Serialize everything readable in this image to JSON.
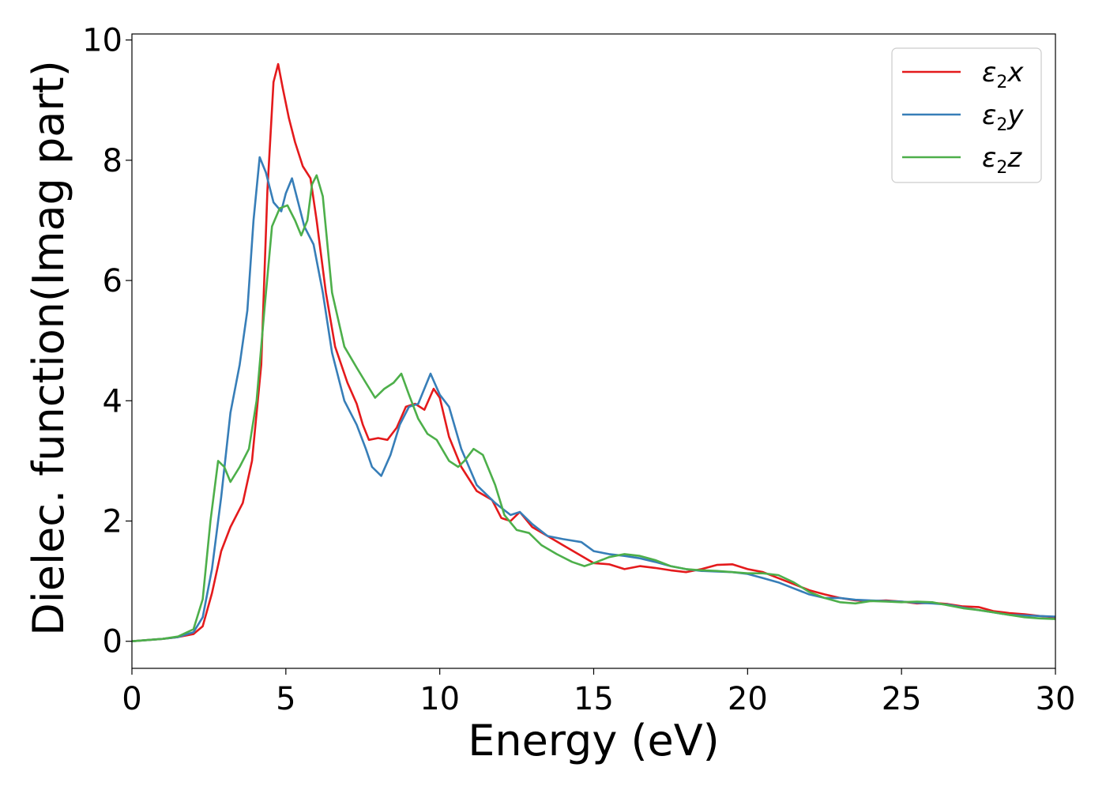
{
  "chart_data": {
    "type": "line",
    "title": "",
    "xlabel": "Energy (eV)",
    "ylabel": "Dielec. function(Imag part)",
    "xlim": [
      0,
      30
    ],
    "ylim": [
      -0.45,
      10.1
    ],
    "xticks": [
      0,
      5,
      10,
      15,
      20,
      25,
      30
    ],
    "yticks": [
      0,
      2,
      4,
      6,
      8,
      10
    ],
    "grid": false,
    "legend_position": "top-right",
    "series": [
      {
        "name": "ε2x",
        "label_base": "ε",
        "label_sub": "2",
        "label_var": "x",
        "color": "#e41a1c",
        "points": [
          [
            0,
            0
          ],
          [
            1,
            0.04
          ],
          [
            1.5,
            0.07
          ],
          [
            2,
            0.12
          ],
          [
            2.3,
            0.25
          ],
          [
            2.6,
            0.8
          ],
          [
            2.9,
            1.5
          ],
          [
            3.2,
            1.9
          ],
          [
            3.6,
            2.3
          ],
          [
            3.9,
            3.0
          ],
          [
            4.2,
            4.6
          ],
          [
            4.4,
            7.5
          ],
          [
            4.6,
            9.3
          ],
          [
            4.75,
            9.6
          ],
          [
            4.9,
            9.2
          ],
          [
            5.1,
            8.7
          ],
          [
            5.3,
            8.3
          ],
          [
            5.55,
            7.9
          ],
          [
            5.8,
            7.7
          ],
          [
            6.0,
            7.0
          ],
          [
            6.3,
            5.8
          ],
          [
            6.6,
            4.9
          ],
          [
            7.0,
            4.3
          ],
          [
            7.3,
            3.95
          ],
          [
            7.5,
            3.6
          ],
          [
            7.7,
            3.35
          ],
          [
            8.0,
            3.38
          ],
          [
            8.3,
            3.35
          ],
          [
            8.6,
            3.55
          ],
          [
            8.9,
            3.9
          ],
          [
            9.2,
            3.95
          ],
          [
            9.5,
            3.85
          ],
          [
            9.8,
            4.2
          ],
          [
            10.0,
            4.05
          ],
          [
            10.3,
            3.4
          ],
          [
            10.7,
            2.9
          ],
          [
            11.2,
            2.5
          ],
          [
            11.7,
            2.35
          ],
          [
            12.0,
            2.05
          ],
          [
            12.3,
            2.0
          ],
          [
            12.6,
            2.15
          ],
          [
            13.0,
            1.9
          ],
          [
            13.5,
            1.75
          ],
          [
            14.0,
            1.6
          ],
          [
            14.5,
            1.45
          ],
          [
            15.0,
            1.3
          ],
          [
            15.5,
            1.28
          ],
          [
            16.0,
            1.2
          ],
          [
            16.5,
            1.25
          ],
          [
            17.0,
            1.22
          ],
          [
            17.5,
            1.18
          ],
          [
            18.0,
            1.15
          ],
          [
            18.5,
            1.2
          ],
          [
            19.0,
            1.27
          ],
          [
            19.5,
            1.28
          ],
          [
            20.0,
            1.2
          ],
          [
            20.5,
            1.15
          ],
          [
            21.0,
            1.05
          ],
          [
            21.5,
            0.95
          ],
          [
            22.0,
            0.85
          ],
          [
            22.5,
            0.78
          ],
          [
            23.0,
            0.72
          ],
          [
            23.5,
            0.68
          ],
          [
            24.0,
            0.67
          ],
          [
            24.5,
            0.68
          ],
          [
            25.0,
            0.66
          ],
          [
            25.5,
            0.63
          ],
          [
            26.0,
            0.64
          ],
          [
            26.5,
            0.62
          ],
          [
            27.0,
            0.58
          ],
          [
            27.5,
            0.57
          ],
          [
            28.0,
            0.5
          ],
          [
            28.5,
            0.47
          ],
          [
            29.0,
            0.45
          ],
          [
            29.5,
            0.42
          ],
          [
            30.0,
            0.4
          ]
        ]
      },
      {
        "name": "ε2y",
        "label_base": "ε",
        "label_sub": "2",
        "label_var": "y",
        "color": "#377eb8",
        "points": [
          [
            0,
            0
          ],
          [
            1,
            0.04
          ],
          [
            1.5,
            0.07
          ],
          [
            2,
            0.15
          ],
          [
            2.3,
            0.4
          ],
          [
            2.6,
            1.2
          ],
          [
            2.9,
            2.4
          ],
          [
            3.2,
            3.8
          ],
          [
            3.5,
            4.6
          ],
          [
            3.75,
            5.5
          ],
          [
            3.95,
            7.0
          ],
          [
            4.15,
            8.05
          ],
          [
            4.35,
            7.8
          ],
          [
            4.6,
            7.3
          ],
          [
            4.85,
            7.15
          ],
          [
            5.0,
            7.45
          ],
          [
            5.2,
            7.7
          ],
          [
            5.4,
            7.3
          ],
          [
            5.6,
            6.9
          ],
          [
            5.9,
            6.6
          ],
          [
            6.2,
            5.8
          ],
          [
            6.5,
            4.8
          ],
          [
            6.9,
            4.0
          ],
          [
            7.3,
            3.6
          ],
          [
            7.6,
            3.2
          ],
          [
            7.8,
            2.9
          ],
          [
            8.1,
            2.75
          ],
          [
            8.4,
            3.1
          ],
          [
            8.7,
            3.6
          ],
          [
            9.0,
            3.9
          ],
          [
            9.3,
            3.95
          ],
          [
            9.7,
            4.45
          ],
          [
            10.0,
            4.1
          ],
          [
            10.3,
            3.9
          ],
          [
            10.7,
            3.2
          ],
          [
            11.2,
            2.6
          ],
          [
            11.8,
            2.3
          ],
          [
            12.3,
            2.1
          ],
          [
            12.6,
            2.15
          ],
          [
            13.0,
            1.95
          ],
          [
            13.5,
            1.75
          ],
          [
            14.0,
            1.7
          ],
          [
            14.6,
            1.65
          ],
          [
            15.0,
            1.5
          ],
          [
            15.5,
            1.45
          ],
          [
            16.0,
            1.42
          ],
          [
            16.5,
            1.38
          ],
          [
            17.0,
            1.32
          ],
          [
            17.5,
            1.25
          ],
          [
            18.0,
            1.2
          ],
          [
            18.5,
            1.17
          ],
          [
            19.0,
            1.16
          ],
          [
            19.5,
            1.15
          ],
          [
            20.0,
            1.12
          ],
          [
            20.5,
            1.05
          ],
          [
            21.0,
            0.98
          ],
          [
            21.5,
            0.88
          ],
          [
            22.0,
            0.78
          ],
          [
            22.5,
            0.72
          ],
          [
            23.0,
            0.72
          ],
          [
            23.5,
            0.69
          ],
          [
            24.0,
            0.68
          ],
          [
            24.5,
            0.67
          ],
          [
            25.0,
            0.66
          ],
          [
            25.5,
            0.64
          ],
          [
            26.0,
            0.63
          ],
          [
            26.5,
            0.61
          ],
          [
            27.0,
            0.56
          ],
          [
            27.5,
            0.52
          ],
          [
            28.0,
            0.48
          ],
          [
            28.5,
            0.44
          ],
          [
            29.0,
            0.43
          ],
          [
            29.5,
            0.42
          ],
          [
            30.0,
            0.41
          ]
        ]
      },
      {
        "name": "ε2z",
        "label_base": "ε",
        "label_sub": "2",
        "label_var": "z",
        "color": "#4daf4a",
        "points": [
          [
            0,
            0
          ],
          [
            1,
            0.04
          ],
          [
            1.5,
            0.08
          ],
          [
            2,
            0.2
          ],
          [
            2.3,
            0.7
          ],
          [
            2.55,
            2.0
          ],
          [
            2.8,
            3.0
          ],
          [
            3.0,
            2.9
          ],
          [
            3.2,
            2.65
          ],
          [
            3.5,
            2.9
          ],
          [
            3.8,
            3.2
          ],
          [
            4.05,
            4.0
          ],
          [
            4.3,
            5.5
          ],
          [
            4.55,
            6.9
          ],
          [
            4.8,
            7.2
          ],
          [
            5.05,
            7.25
          ],
          [
            5.3,
            7.0
          ],
          [
            5.5,
            6.75
          ],
          [
            5.7,
            7.0
          ],
          [
            5.85,
            7.6
          ],
          [
            6.0,
            7.75
          ],
          [
            6.2,
            7.4
          ],
          [
            6.5,
            5.8
          ],
          [
            6.9,
            4.9
          ],
          [
            7.3,
            4.55
          ],
          [
            7.6,
            4.3
          ],
          [
            7.9,
            4.05
          ],
          [
            8.2,
            4.2
          ],
          [
            8.5,
            4.3
          ],
          [
            8.75,
            4.45
          ],
          [
            9.0,
            4.1
          ],
          [
            9.3,
            3.7
          ],
          [
            9.6,
            3.45
          ],
          [
            9.9,
            3.35
          ],
          [
            10.3,
            3.0
          ],
          [
            10.6,
            2.9
          ],
          [
            10.8,
            3.0
          ],
          [
            11.1,
            3.2
          ],
          [
            11.4,
            3.1
          ],
          [
            11.8,
            2.6
          ],
          [
            12.1,
            2.1
          ],
          [
            12.5,
            1.85
          ],
          [
            12.9,
            1.8
          ],
          [
            13.3,
            1.6
          ],
          [
            13.8,
            1.45
          ],
          [
            14.3,
            1.32
          ],
          [
            14.7,
            1.25
          ],
          [
            15.1,
            1.32
          ],
          [
            15.5,
            1.4
          ],
          [
            16.0,
            1.45
          ],
          [
            16.5,
            1.42
          ],
          [
            17.0,
            1.35
          ],
          [
            17.5,
            1.25
          ],
          [
            18.0,
            1.2
          ],
          [
            18.5,
            1.18
          ],
          [
            19.0,
            1.17
          ],
          [
            19.5,
            1.15
          ],
          [
            20.0,
            1.13
          ],
          [
            20.5,
            1.13
          ],
          [
            21.0,
            1.1
          ],
          [
            21.5,
            0.98
          ],
          [
            22.0,
            0.82
          ],
          [
            22.5,
            0.72
          ],
          [
            23.0,
            0.65
          ],
          [
            23.5,
            0.63
          ],
          [
            24.0,
            0.67
          ],
          [
            24.5,
            0.66
          ],
          [
            25.0,
            0.65
          ],
          [
            25.5,
            0.66
          ],
          [
            26.0,
            0.65
          ],
          [
            26.5,
            0.6
          ],
          [
            27.0,
            0.55
          ],
          [
            27.5,
            0.52
          ],
          [
            28.0,
            0.48
          ],
          [
            28.5,
            0.44
          ],
          [
            29.0,
            0.4
          ],
          [
            29.5,
            0.38
          ],
          [
            30.0,
            0.37
          ]
        ]
      }
    ]
  }
}
